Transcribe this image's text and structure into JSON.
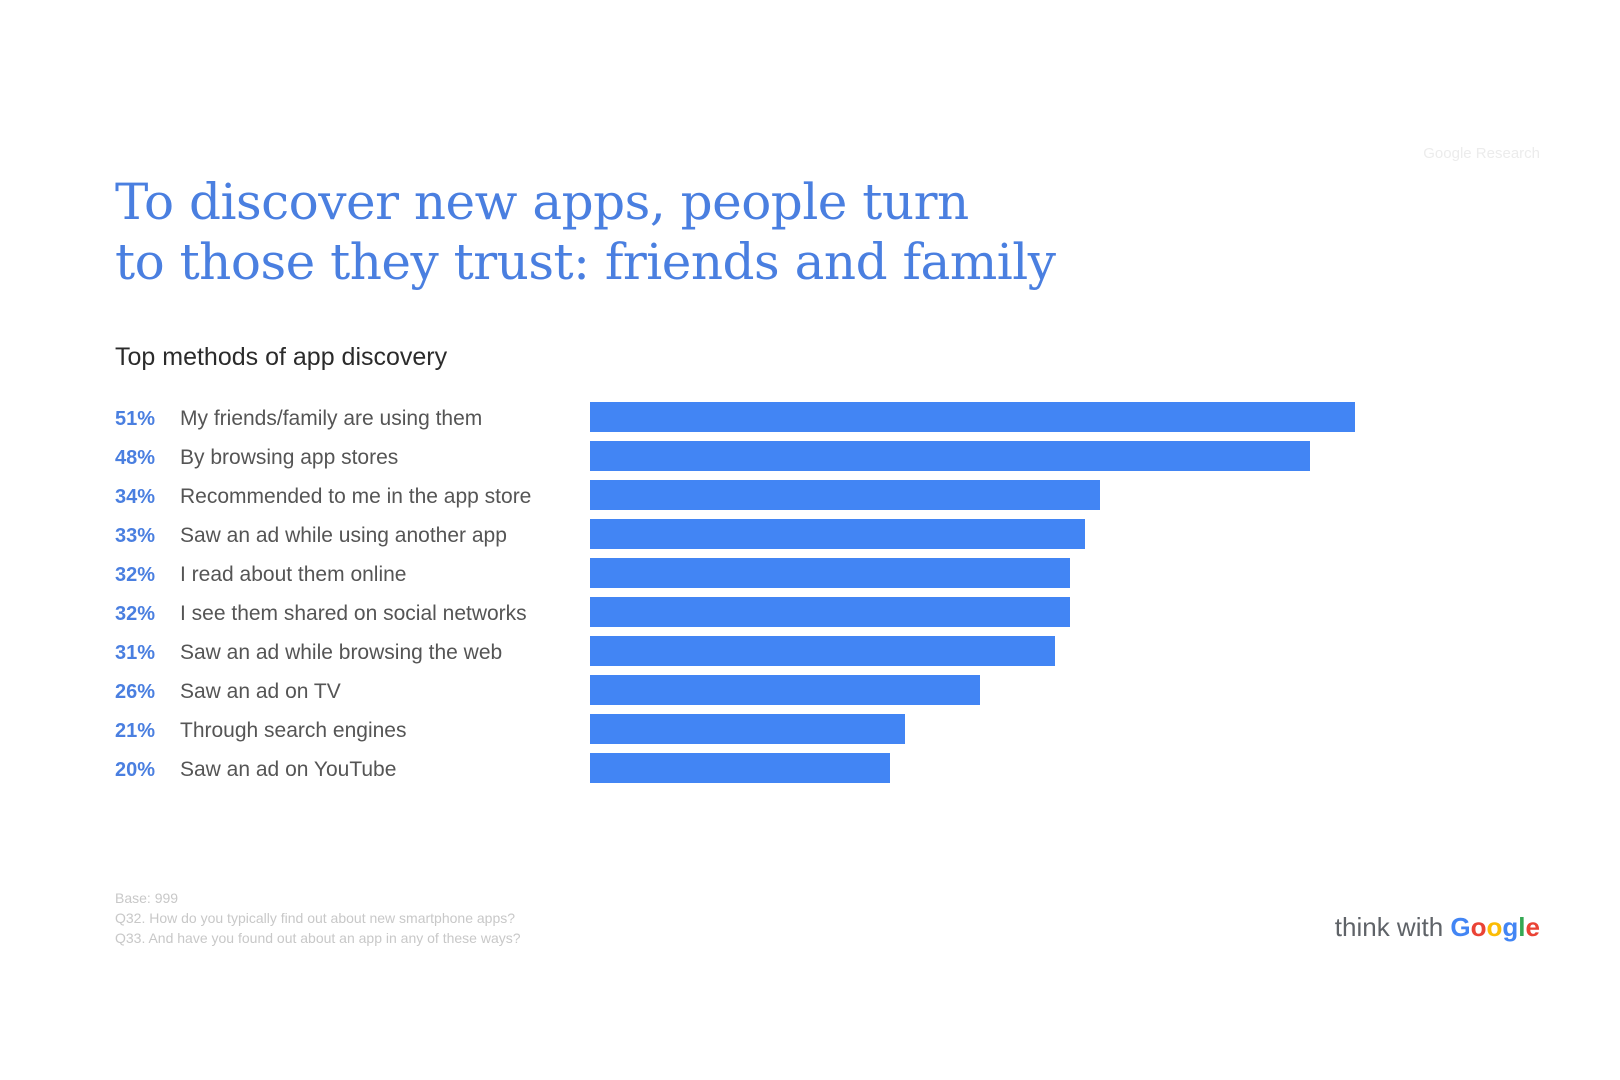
{
  "source_tag": "Google Research",
  "title_lines": [
    "To discover new apps, people turn",
    "to those they trust: friends and family"
  ],
  "chart_data": {
    "type": "bar",
    "orientation": "horizontal",
    "title": "Top methods of app discovery",
    "categories": [
      "My friends/family are using them",
      "By browsing app stores",
      "Recommended to me in the app store",
      "Saw an ad while using another app",
      "I read about them online",
      "I see them shared on social networks",
      "Saw an ad while browsing the web",
      "Saw an ad on TV",
      "Through search engines",
      "Saw an ad on YouTube"
    ],
    "values": [
      51,
      48,
      34,
      33,
      32,
      32,
      31,
      26,
      21,
      20
    ],
    "value_labels": [
      "51%",
      "48%",
      "34%",
      "33%",
      "32%",
      "32%",
      "31%",
      "26%",
      "21%",
      "20%"
    ],
    "unit": "%",
    "xlim": [
      0,
      51
    ],
    "bar_color": "#4285f4",
    "label_color": "#4a7fe0",
    "grid": false,
    "legend": "none"
  },
  "footnotes": [
    "Base: 999",
    "Q32. How do you typically find out about new smartphone apps?",
    "Q33. And have you found out about an app in any of these ways?"
  ],
  "brand": {
    "prefix": "think with ",
    "letters": [
      "G",
      "o",
      "o",
      "g",
      "l",
      "e"
    ],
    "letter_colors": [
      "#4285f4",
      "#ea4335",
      "#fbbc05",
      "#4285f4",
      "#34a853",
      "#ea4335"
    ]
  }
}
